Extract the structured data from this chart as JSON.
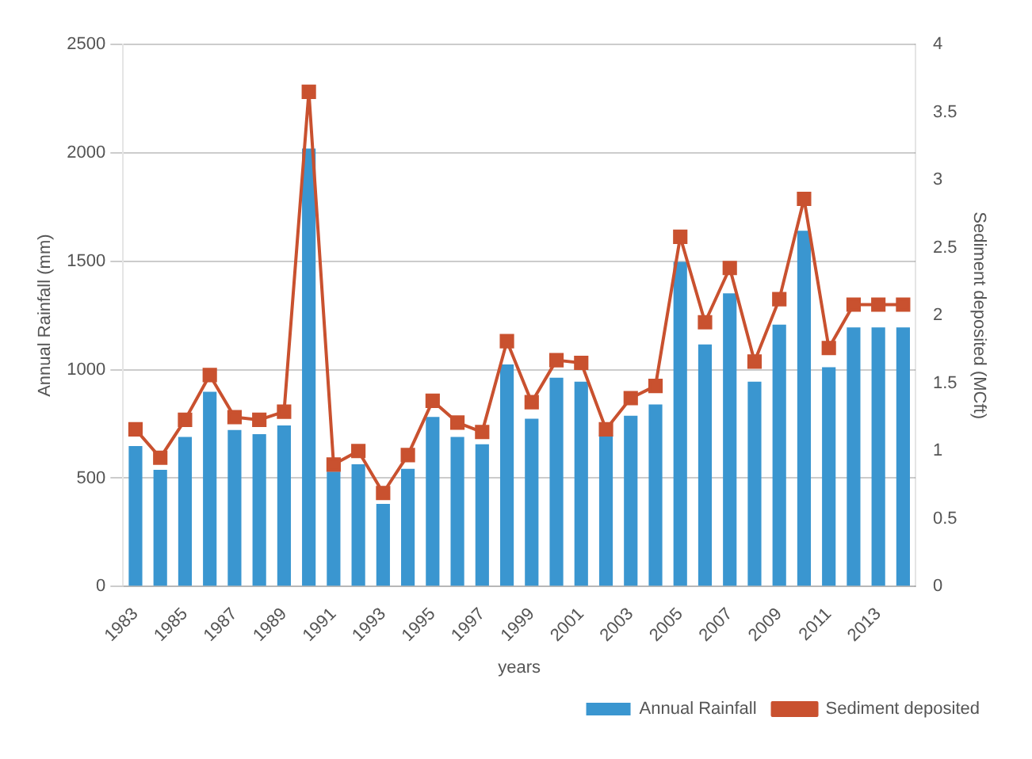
{
  "chart_data": {
    "type": "bar",
    "xlabel": "years",
    "ylabel": "Annual Rainfall (mm)",
    "y2label": "Sediment deposited (MCft)",
    "categories": [
      "1983",
      null,
      "1985",
      null,
      "1987",
      null,
      "1989",
      null,
      "1991",
      null,
      "1993",
      null,
      "1995",
      null,
      "1997",
      null,
      "1999",
      null,
      "2001",
      null,
      "2003",
      null,
      "2005",
      null,
      "2007",
      null,
      "2009",
      null,
      "2011",
      null,
      "2013",
      null
    ],
    "series": [
      {
        "name": "Annual Rainfall",
        "color": "#3a96d0",
        "values": [
          648,
          538,
          690,
          898,
          722,
          703,
          743,
          2020,
          530,
          564,
          381,
          543,
          782,
          690,
          656,
          1024,
          774,
          963,
          945,
          700,
          788,
          840,
          1497,
          1116,
          1352,
          945,
          1208,
          1641,
          1011,
          1195,
          1195,
          1195
        ]
      },
      {
        "name": "Sediment deposited",
        "type": "line",
        "axis": "y2",
        "color": "#c9512f",
        "values": [
          1.16,
          0.95,
          1.23,
          1.56,
          1.25,
          1.23,
          1.29,
          3.65,
          0.9,
          1.0,
          0.69,
          0.97,
          1.37,
          1.21,
          1.14,
          1.81,
          1.36,
          1.67,
          1.65,
          1.16,
          1.39,
          1.48,
          2.58,
          1.95,
          2.35,
          1.66,
          2.12,
          2.86,
          1.76,
          2.08,
          2.08,
          2.08
        ]
      }
    ],
    "ylim": [
      0,
      2500
    ],
    "yticks": [
      0,
      500,
      1000,
      1500,
      2000,
      2500
    ],
    "y2lim": [
      0,
      4
    ],
    "y2ticks": [
      0,
      0.5,
      1,
      1.5,
      2,
      2.5,
      3,
      3.5,
      4
    ],
    "grid": "y",
    "legend": "bottom right",
    "marker": "square",
    "line_style": "solid"
  }
}
